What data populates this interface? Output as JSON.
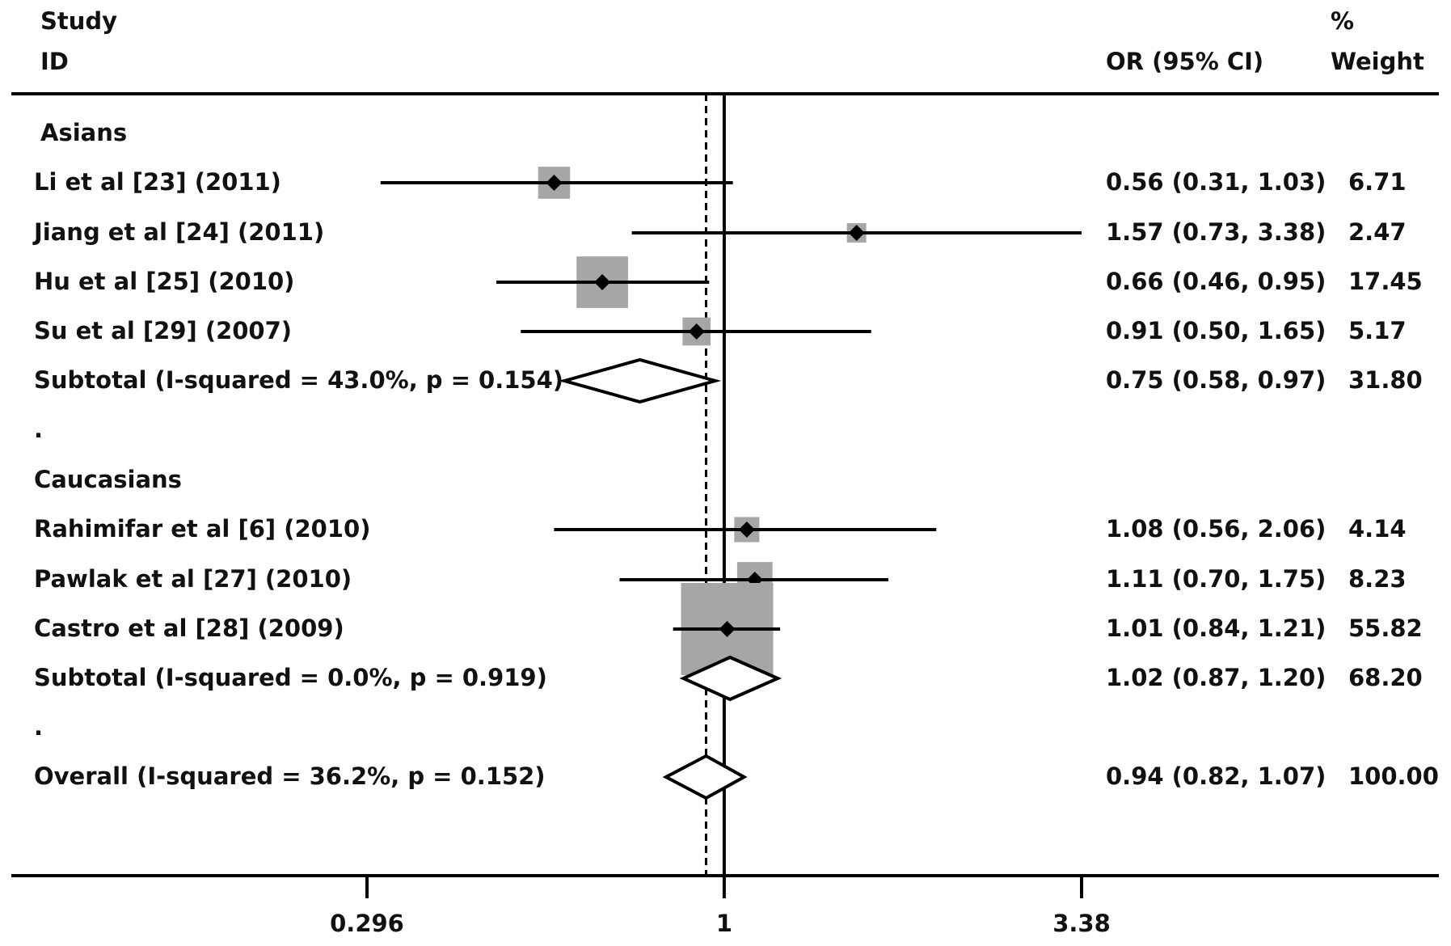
{
  "header": {
    "study_line1": "Study",
    "study_line2": "ID",
    "pct_line1": "%",
    "ci_label": "OR (95% CI)",
    "weight_label": "Weight"
  },
  "rows": [
    {
      "kind": "group",
      "label": "Asians"
    },
    {
      "kind": "study",
      "label": "Li et al [23] (2011)",
      "ci_text": "0.56 (0.31, 1.03)",
      "weight_text": "6.71"
    },
    {
      "kind": "study",
      "label": "Jiang et al [24] (2011)",
      "ci_text": "1.57 (0.73, 3.38)",
      "weight_text": "2.47"
    },
    {
      "kind": "study",
      "label": "Hu et al [25] (2010)",
      "ci_text": "0.66 (0.46, 0.95)",
      "weight_text": "17.45"
    },
    {
      "kind": "study",
      "label": "Su et al [29] (2007)",
      "ci_text": "0.91 (0.50, 1.65)",
      "weight_text": "5.17"
    },
    {
      "kind": "subtotal",
      "label": "Subtotal  (I-squared = 43.0%, p = 0.154)",
      "ci_text": "0.75 (0.58, 0.97)",
      "weight_text": "31.80"
    },
    {
      "kind": "spacer",
      "label": "."
    },
    {
      "kind": "group",
      "label": "Caucasians"
    },
    {
      "kind": "study",
      "label": "Rahimifar et al [6] (2010)",
      "ci_text": "1.08 (0.56, 2.06)",
      "weight_text": "4.14"
    },
    {
      "kind": "study",
      "label": "Pawlak et al [27] (2010)",
      "ci_text": "1.11 (0.70, 1.75)",
      "weight_text": "8.23"
    },
    {
      "kind": "study",
      "label": "Castro et al [28] (2009)",
      "ci_text": "1.01 (0.84, 1.21)",
      "weight_text": "55.82"
    },
    {
      "kind": "subtotal",
      "label": "Subtotal  (I-squared = 0.0%, p = 0.919)",
      "ci_text": "1.02 (0.87, 1.20)",
      "weight_text": "68.20"
    },
    {
      "kind": "spacer",
      "label": "."
    },
    {
      "kind": "overall",
      "label": "Overall  (I-squared = 36.2%, p = 0.152)",
      "ci_text": "0.94 (0.82, 1.07)",
      "weight_text": "100.00"
    }
  ],
  "chart_data": {
    "type": "forest",
    "x_scale": "log",
    "xlim": [
      0.296,
      3.38
    ],
    "x_ticks": [
      0.296,
      1,
      3.38
    ],
    "x_tick_labels": [
      "0.296",
      "1",
      "3.38"
    ],
    "null_line": 1,
    "overall_line": 0.94,
    "colors": {
      "box": "#a6a6a6",
      "line": "#000000",
      "diamond_fill": "#ffffff"
    },
    "estimates": [
      {
        "label": "Li et al [23] (2011)",
        "or": 0.56,
        "lo": 0.31,
        "hi": 1.03,
        "weight": 6.71
      },
      {
        "label": "Jiang et al [24] (2011)",
        "or": 1.57,
        "lo": 0.73,
        "hi": 3.38,
        "weight": 2.47
      },
      {
        "label": "Hu et al [25] (2010)",
        "or": 0.66,
        "lo": 0.46,
        "hi": 0.95,
        "weight": 17.45
      },
      {
        "label": "Su et al [29] (2007)",
        "or": 0.91,
        "lo": 0.5,
        "hi": 1.65,
        "weight": 5.17
      },
      {
        "label": "Asians subtotal",
        "or": 0.75,
        "lo": 0.58,
        "hi": 0.97,
        "weight": 31.8,
        "diamond": true
      },
      {
        "label": "Rahimifar et al [6] (2010)",
        "or": 1.08,
        "lo": 0.56,
        "hi": 2.06,
        "weight": 4.14
      },
      {
        "label": "Pawlak et al [27] (2010)",
        "or": 1.11,
        "lo": 0.7,
        "hi": 1.75,
        "weight": 8.23
      },
      {
        "label": "Castro et al [28] (2009)",
        "or": 1.01,
        "lo": 0.84,
        "hi": 1.21,
        "weight": 55.82
      },
      {
        "label": "Caucasians subtotal",
        "or": 1.02,
        "lo": 0.87,
        "hi": 1.2,
        "weight": 68.2,
        "diamond": true
      },
      {
        "label": "Overall",
        "or": 0.94,
        "lo": 0.82,
        "hi": 1.07,
        "weight": 100.0,
        "diamond": true
      }
    ]
  }
}
